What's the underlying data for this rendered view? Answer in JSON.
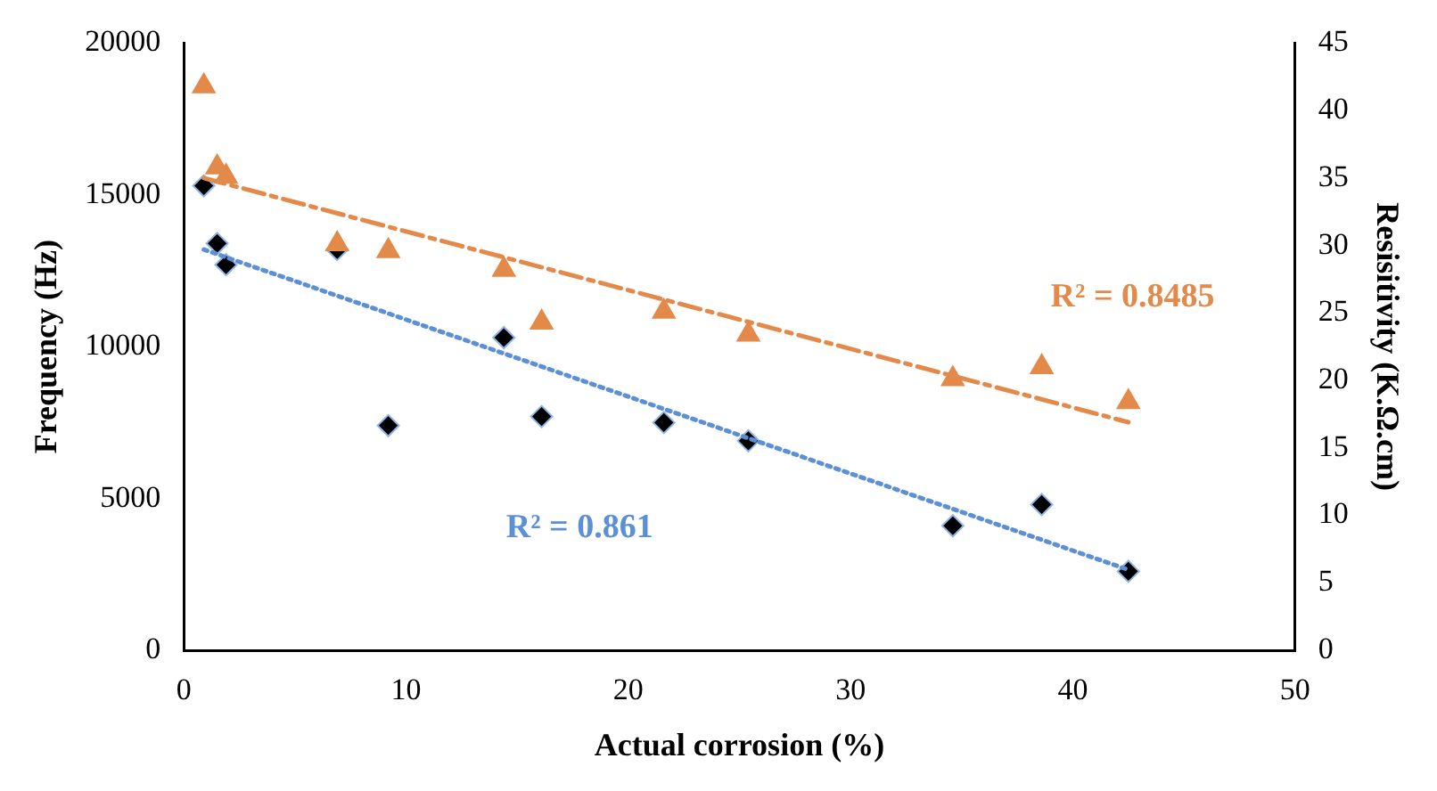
{
  "chart_data": {
    "type": "scatter",
    "xlabel": "Actual corrosion (%)",
    "ylabel": "Frequency (Hz)",
    "y2label": "Resisitivity (K.Ω.cm)",
    "xlim": [
      0,
      50
    ],
    "xticks": [
      0,
      10,
      20,
      30,
      40,
      50
    ],
    "ylim": [
      0,
      20000
    ],
    "yticks": [
      0,
      5000,
      10000,
      15000,
      20000
    ],
    "y2lim": [
      0,
      45
    ],
    "y2ticks": [
      0,
      5,
      10,
      15,
      20,
      25,
      30,
      35,
      40,
      45
    ],
    "grid": false,
    "legend": false,
    "series": [
      {
        "type": "scatter",
        "marker": "diamond",
        "color": "#000000",
        "x": [
          0.9,
          1.5,
          1.9,
          6.9,
          9.2,
          14.4,
          16.1,
          21.6,
          25.4,
          34.6,
          38.6,
          42.5
        ],
        "values": [
          15300,
          13400,
          12700,
          13200,
          7400,
          10300,
          7700,
          7500,
          6900,
          4100,
          4800,
          2600
        ]
      },
      {
        "type": "scatter",
        "marker": "triangle",
        "axis": "y2",
        "color": "#e3894a",
        "x": [
          0.9,
          1.5,
          1.9,
          6.9,
          9.2,
          14.4,
          16.1,
          21.6,
          25.4,
          34.6,
          38.6,
          42.5
        ],
        "values": [
          41.8,
          35.8,
          35.1,
          30.1,
          29.6,
          28.2,
          24.3,
          25.1,
          23.4,
          20.1,
          21.0,
          18.4
        ]
      },
      {
        "type": "line",
        "line_style": "dotted",
        "color": "#5b8fd6",
        "x": [
          0.9,
          42.5
        ],
        "values": [
          13200,
          2650
        ]
      },
      {
        "type": "line",
        "line_style": "dashed",
        "axis": "y2",
        "color": "#e3894a",
        "x": [
          0.9,
          42.5
        ],
        "values": [
          35.0,
          16.9
        ]
      }
    ],
    "annotations": [
      "R² = 0.861",
      "R² = 0.8485"
    ]
  }
}
